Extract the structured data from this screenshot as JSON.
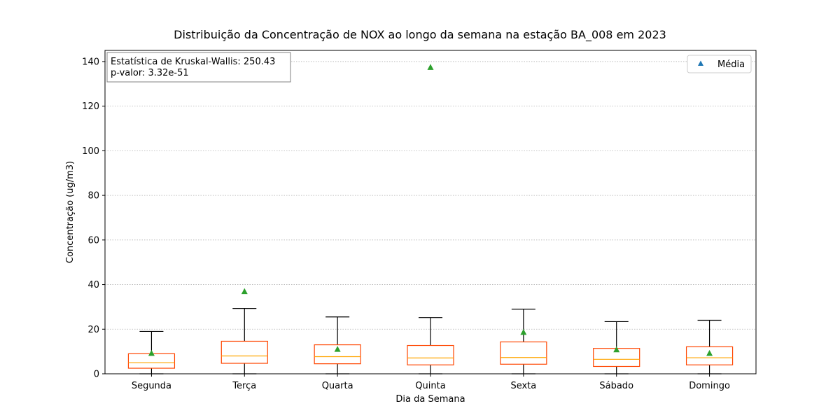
{
  "chart_data": {
    "type": "box",
    "title": "Distribuição da Concentração de NOX ao longo da semana na estação BA_008 em 2023",
    "xlabel": "Dia da Semana",
    "ylabel": "Concentração (ug/m3)",
    "ylim": [
      0,
      145
    ],
    "yticks": [
      0,
      20,
      40,
      60,
      80,
      100,
      120,
      140
    ],
    "grid": "y-dotted",
    "categories": [
      "Segunda",
      "Terça",
      "Quarta",
      "Quinta",
      "Sexta",
      "Sábado",
      "Domingo"
    ],
    "boxes": [
      {
        "whisker_low": 0,
        "q1": 2.5,
        "median": 5,
        "q3": 9,
        "whisker_high": 19,
        "mean": 9.3
      },
      {
        "whisker_low": 0,
        "q1": 4.7,
        "median": 8,
        "q3": 14.6,
        "whisker_high": 29.3,
        "mean": 37
      },
      {
        "whisker_low": 0,
        "q1": 4.5,
        "median": 7.7,
        "q3": 13,
        "whisker_high": 25.5,
        "mean": 11.1
      },
      {
        "whisker_low": 0,
        "q1": 4,
        "median": 7.1,
        "q3": 12.7,
        "whisker_high": 25.2,
        "mean": 137.5
      },
      {
        "whisker_low": 0,
        "q1": 4.3,
        "median": 7.3,
        "q3": 14.3,
        "whisker_high": 29,
        "mean": 18.7
      },
      {
        "whisker_low": 0,
        "q1": 3.3,
        "median": 6.5,
        "q3": 11.4,
        "whisker_high": 23.4,
        "mean": 10.9
      },
      {
        "whisker_low": 0,
        "q1": 4,
        "median": 7.2,
        "q3": 12.1,
        "whisker_high": 24,
        "mean": 9.3
      }
    ],
    "legend": {
      "placement": "top-right",
      "entries": [
        {
          "label": "Média",
          "marker_color": "#1f77b4"
        }
      ]
    },
    "annotation": {
      "placement": "top-left",
      "lines": [
        "Estatística de Kruskal-Wallis: 250.43",
        "p-valor: 3.32e-51"
      ]
    },
    "colors": {
      "box_edge": "#ff4500",
      "median": "#ffa500",
      "whisker": "#000000",
      "mean_marker": "#2ca02c",
      "grid": "#b0b0b0"
    }
  }
}
